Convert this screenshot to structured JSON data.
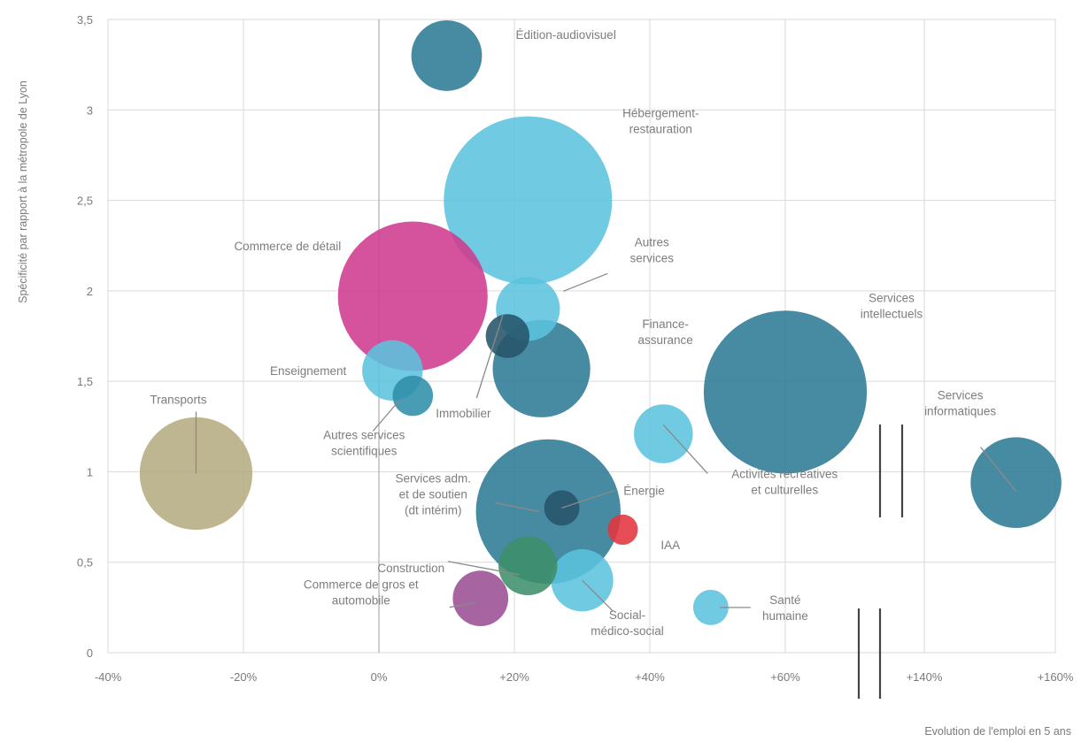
{
  "chart_data": {
    "type": "bubble",
    "xlabel": "Evolution de l'emploi en 5 ans",
    "ylabel": "Spécificité par rapport à la métropole de Lyon",
    "ylim": [
      0,
      3.5
    ],
    "yticks": [
      "0",
      "0,5",
      "1",
      "1,5",
      "2",
      "2,5",
      "3",
      "3,5"
    ],
    "xticks": [
      "-40%",
      "-20%",
      "0%",
      "+20%",
      "+40%",
      "+60%",
      "+140%",
      "+160%"
    ],
    "x_axis_break": true,
    "grid": true,
    "colors": {
      "teal_dark": "#2c7b94",
      "teal_mid": "#2f8ea8",
      "cyan": "#5bc3de",
      "magenta": "#cf3a8e",
      "khaki": "#b5ab82",
      "purple": "#9a4f94",
      "yellow": "#f0b92c",
      "green": "#3d8f6a",
      "red": "#e4343d",
      "slate": "#27546a"
    },
    "points": [
      {
        "name": "Édition-audiovisuel",
        "label": [
          "Édition-audiovisuel"
        ],
        "x": 10,
        "y": 3.3,
        "size": 0.42,
        "color": "#2c7b94"
      },
      {
        "name": "Hébergement-restauration",
        "label": [
          "Hébergement-",
          "restauration"
        ],
        "x": 22,
        "y": 2.5,
        "size": 1.0,
        "color": "#5bc3de"
      },
      {
        "name": "Commerce de détail",
        "label": [
          "Commerce de détail"
        ],
        "x": 5,
        "y": 1.97,
        "size": 0.89,
        "color": "#cf3a8e"
      },
      {
        "name": "Autres services",
        "label": [
          "Autres",
          "services"
        ],
        "x": 22,
        "y": 1.9,
        "size": 0.38,
        "color": "#5bc3de"
      },
      {
        "name": "Finance-assurance",
        "label": [
          "Finance-",
          "assurance"
        ],
        "x": 24,
        "y": 1.57,
        "size": 0.58,
        "color": "#2c7b94"
      },
      {
        "name": "Immobilier",
        "label": [
          "Immobilier"
        ],
        "x": 19,
        "y": 1.75,
        "size": 0.26,
        "color": "#27546a"
      },
      {
        "name": "Enseignement",
        "label": [
          "Enseignement"
        ],
        "x": 2,
        "y": 1.56,
        "size": 0.36,
        "color": "#5bc3de"
      },
      {
        "name": "Autres services scientifiques",
        "label": [
          "Autres services",
          "scientifiques"
        ],
        "x": 5,
        "y": 1.42,
        "size": 0.24,
        "color": "#2f8ea8"
      },
      {
        "name": "Services intellectuels",
        "label": [
          "Services",
          "intellectuels"
        ],
        "x": 60,
        "y": 1.44,
        "size": 0.97,
        "color": "#2c7b94"
      },
      {
        "name": "Transports",
        "label": [
          "Transports"
        ],
        "x": -27,
        "y": 0.99,
        "size": 0.67,
        "color": "#b5ab82"
      },
      {
        "name": "Services informatiques",
        "label": [
          "Services",
          "informatiques"
        ],
        "x": 154,
        "y": 0.94,
        "size": 0.54,
        "color": "#2c7b94"
      },
      {
        "name": "Activités récréatives et culturelles",
        "label": [
          "Activités récréatives",
          "et culturelles"
        ],
        "x": 42,
        "y": 1.21,
        "size": 0.35,
        "color": "#5bc3de"
      },
      {
        "name": "Services adm. et de soutien (dt intérim)",
        "label": [
          "Services adm.",
          "et de soutien",
          "(dt intérim)"
        ],
        "x": 25,
        "y": 0.78,
        "size": 0.86,
        "color": "#2c7b94"
      },
      {
        "name": "Énergie",
        "label": [
          "Énergie"
        ],
        "x": 27,
        "y": 0.8,
        "size": 0.21,
        "color": "#27546a"
      },
      {
        "name": "IAA",
        "label": [
          "IAA"
        ],
        "x": 36,
        "y": 0.68,
        "size": 0.18,
        "color": "#e4343d"
      },
      {
        "name": "Construction",
        "label": [
          "Construction"
        ],
        "x": 22,
        "y": 0.48,
        "size": 0.35,
        "color": "#3d8f6a"
      },
      {
        "name": "Commerce de gros et automobile",
        "label": [
          "Commerce de gros et",
          "automobile"
        ],
        "x": 15,
        "y": 0.3,
        "size": 0.33,
        "color": "#9a4f94"
      },
      {
        "name": "Social-médico-social",
        "label": [
          "Social-",
          "médico-social"
        ],
        "x": 30,
        "y": 0.4,
        "size": 0.37,
        "color": "#5bc3de"
      },
      {
        "name": "Santé humaine",
        "label": [
          "Santé",
          "humaine"
        ],
        "x": 49,
        "y": 0.25,
        "size": 0.21,
        "color": "#5bc3de"
      }
    ]
  }
}
